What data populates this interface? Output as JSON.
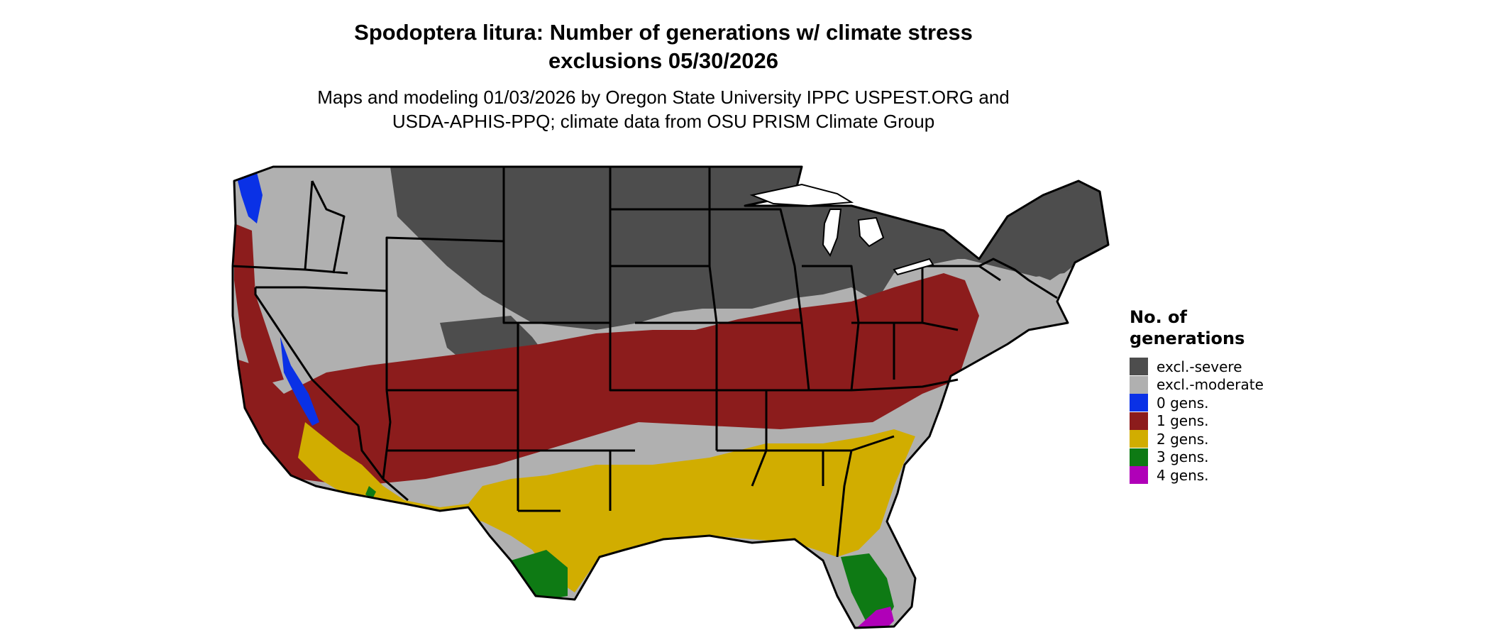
{
  "title": {
    "line1": "Spodoptera litura: Number of generations w/ climate stress",
    "line2": "exclusions 05/30/2026"
  },
  "subtitle": {
    "line1": "Maps and modeling 01/03/2026 by Oregon State University IPPC USPEST.ORG and",
    "line2": "USDA-APHIS-PPQ; climate data from OSU PRISM Climate Group"
  },
  "legend": {
    "title_line1": "No. of",
    "title_line2": "generations",
    "items": [
      {
        "label": "excl.-severe",
        "color": "#4d4d4d"
      },
      {
        "label": "excl.-moderate",
        "color": "#b0b0b0"
      },
      {
        "label": "0 gens.",
        "color": "#0a31e6"
      },
      {
        "label": "1 gens.",
        "color": "#8c1c1c"
      },
      {
        "label": "2 gens.",
        "color": "#d1ad00"
      },
      {
        "label": "3 gens.",
        "color": "#0e7a14"
      },
      {
        "label": "4 gens.",
        "color": "#b000b8"
      }
    ]
  },
  "map_colors": {
    "severe": "#4d4d4d",
    "moderate": "#b0b0b0",
    "gens0": "#0a31e6",
    "gens1": "#8c1c1c",
    "gens2": "#d1ad00",
    "gens3": "#0e7a14",
    "gens4": "#b000b8",
    "border": "#000000"
  }
}
